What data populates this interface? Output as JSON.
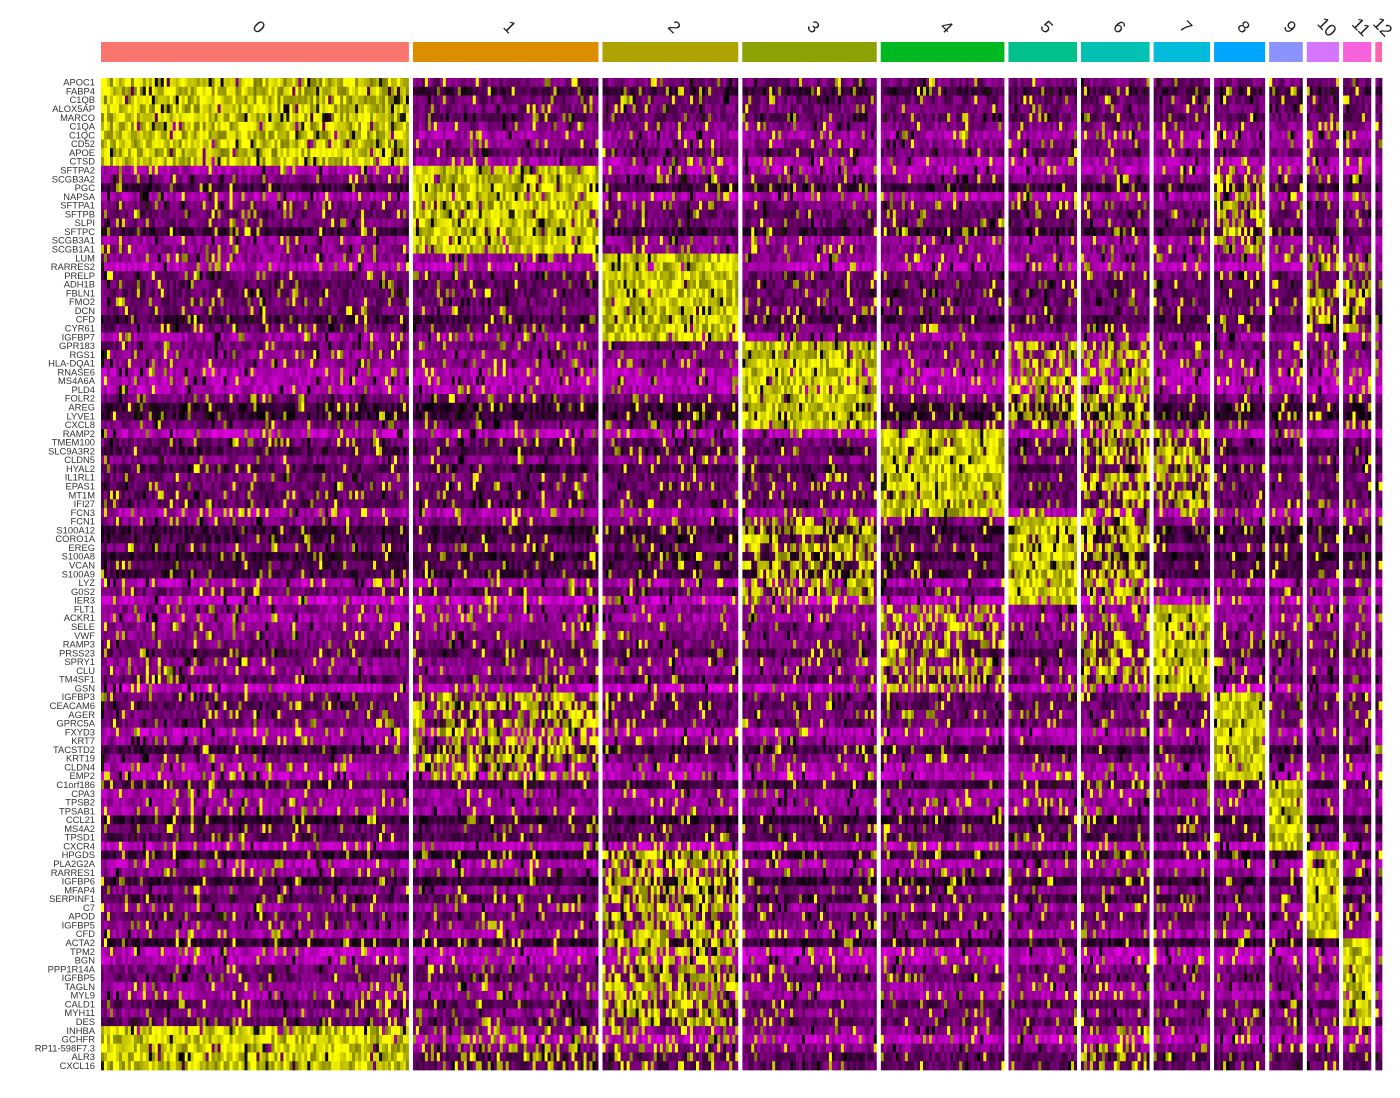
{
  "chart_data": {
    "type": "heatmap",
    "title": "",
    "xlabel": "",
    "ylabel": "",
    "clusters": [
      {
        "name": "0",
        "color": "#F8766D"
      },
      {
        "name": "1",
        "color": "#DB8E00"
      },
      {
        "name": "2",
        "color": "#AEA200"
      },
      {
        "name": "3",
        "color": "#8BA200"
      },
      {
        "name": "4",
        "color": "#00B81F"
      },
      {
        "name": "5",
        "color": "#00C08B"
      },
      {
        "name": "6",
        "color": "#00C1B2"
      },
      {
        "name": "7",
        "color": "#00BBDA"
      },
      {
        "name": "8",
        "color": "#00A5FF"
      },
      {
        "name": "9",
        "color": "#8B93FF"
      },
      {
        "name": "10",
        "color": "#D575FE"
      },
      {
        "name": "11",
        "color": "#F962DD"
      },
      {
        "name": "12",
        "color": "#FF65AC"
      }
    ],
    "cluster_cell_share": [
      0.229,
      0.138,
      0.101,
      0.1,
      0.092,
      0.051,
      0.051,
      0.042,
      0.038,
      0.025,
      0.024,
      0.021,
      0.005
    ],
    "genes": [
      "APOC1",
      "FABP4",
      "C1QB",
      "ALOX5AP",
      "MARCO",
      "C1QA",
      "C1QC",
      "CD52",
      "APOE",
      "CTSD",
      "SFTPA2",
      "SCGB3A2",
      "PGC",
      "NAPSA",
      "SFTPA1",
      "SFTPB",
      "SLPI",
      "SFTPC",
      "SCGB3A1",
      "SCGB1A1",
      "LUM",
      "RARRES2",
      "PRELP",
      "ADH1B",
      "FBLN1",
      "FMO2",
      "DCN",
      "CFD",
      "CYR61",
      "IGFBP7",
      "GPR183",
      "RGS1",
      "HLA-DQA1",
      "RNASE6",
      "MS4A6A",
      "PLD4",
      "FOLR2",
      "AREG",
      "LYVE1",
      "CXCL8",
      "RAMP2",
      "TMEM100",
      "SLC9A3R2",
      "CLDN5",
      "HYAL2",
      "IL1RL1",
      "EPAS1",
      "MT1M",
      "IFI27",
      "FCN3",
      "FCN1",
      "S100A12",
      "CORO1A",
      "EREG",
      "S100A8",
      "VCAN",
      "S100A9",
      "LYZ",
      "G0S2",
      "IER3",
      "FLT1",
      "ACKR1",
      "SELE",
      "VWF",
      "RAMP3",
      "PRSS23",
      "SPRY1",
      "CLU",
      "TM4SF1",
      "GSN",
      "IGFBP3",
      "CEACAM6",
      "AGER",
      "GPRC5A",
      "FXYD3",
      "KRT7",
      "TACSTD2",
      "KRT19",
      "CLDN4",
      "EMP2",
      "C1orf186",
      "CPA3",
      "TPSB2",
      "TPSAB1",
      "CCL21",
      "MS4A2",
      "TPSD1",
      "CXCR4",
      "HPGDS",
      "PLA2G2A",
      "RARRES1",
      "IGFBP6",
      "MFAP4",
      "SERPINF1",
      "C7",
      "APOD",
      "IGFBP5",
      "CFD",
      "ACTA2",
      "TPM2",
      "BGN",
      "PPP1R14A",
      "IGFBP5",
      "TAGLN",
      "MYL9",
      "CALD1",
      "MYH11",
      "DES",
      "INHBA",
      "GCHFR",
      "RP11-598F7.3",
      "ALR3",
      "CXCL16"
    ],
    "gene_blocks": [
      {
        "cluster": "0",
        "gene_range": [
          0,
          9
        ]
      },
      {
        "cluster": "1",
        "gene_range": [
          10,
          19
        ]
      },
      {
        "cluster": "2",
        "gene_range": [
          20,
          29
        ]
      },
      {
        "cluster": "3",
        "gene_range": [
          30,
          39
        ]
      },
      {
        "cluster": "4",
        "gene_range": [
          40,
          49
        ]
      },
      {
        "cluster": "5",
        "gene_range": [
          50,
          59
        ]
      },
      {
        "cluster": "7",
        "gene_range": [
          60,
          69
        ]
      },
      {
        "cluster": "8",
        "gene_range": [
          70,
          79
        ]
      },
      {
        "cluster": "9",
        "gene_range": [
          80,
          87
        ]
      },
      {
        "cluster": "10",
        "gene_range": [
          88,
          97
        ]
      },
      {
        "cluster": "11",
        "gene_range": [
          98,
          107
        ]
      },
      {
        "cluster": "0",
        "gene_range": [
          108,
          112
        ]
      }
    ],
    "secondary_expression": [
      {
        "gene_range": [
          10,
          19
        ],
        "clusters": [
          "8"
        ],
        "level": 0.5
      },
      {
        "gene_range": [
          20,
          29
        ],
        "clusters": [
          "10",
          "11"
        ],
        "level": 0.45
      },
      {
        "gene_range": [
          30,
          39
        ],
        "clusters": [
          "5",
          "6"
        ],
        "level": 0.55
      },
      {
        "gene_range": [
          40,
          49
        ],
        "clusters": [
          "6",
          "7"
        ],
        "level": 0.55
      },
      {
        "gene_range": [
          50,
          59
        ],
        "clusters": [
          "3",
          "6"
        ],
        "level": 0.55
      },
      {
        "gene_range": [
          60,
          69
        ],
        "clusters": [
          "4",
          "6"
        ],
        "level": 0.5
      },
      {
        "gene_range": [
          70,
          79
        ],
        "clusters": [
          "1"
        ],
        "level": 0.55
      },
      {
        "gene_range": [
          88,
          97
        ],
        "clusters": [
          "2"
        ],
        "level": 0.6
      },
      {
        "gene_range": [
          98,
          107
        ],
        "clusters": [
          "2"
        ],
        "level": 0.6
      },
      {
        "gene_range": [
          108,
          112
        ],
        "clusters": [
          "1",
          "2",
          "6"
        ],
        "level": 0.3
      }
    ],
    "color_scale": {
      "low": "#FF00FF",
      "mid": "#000000",
      "high": "#FFFF00",
      "range": [
        -2.5,
        2.5
      ]
    },
    "legend": "none",
    "grid": false
  }
}
